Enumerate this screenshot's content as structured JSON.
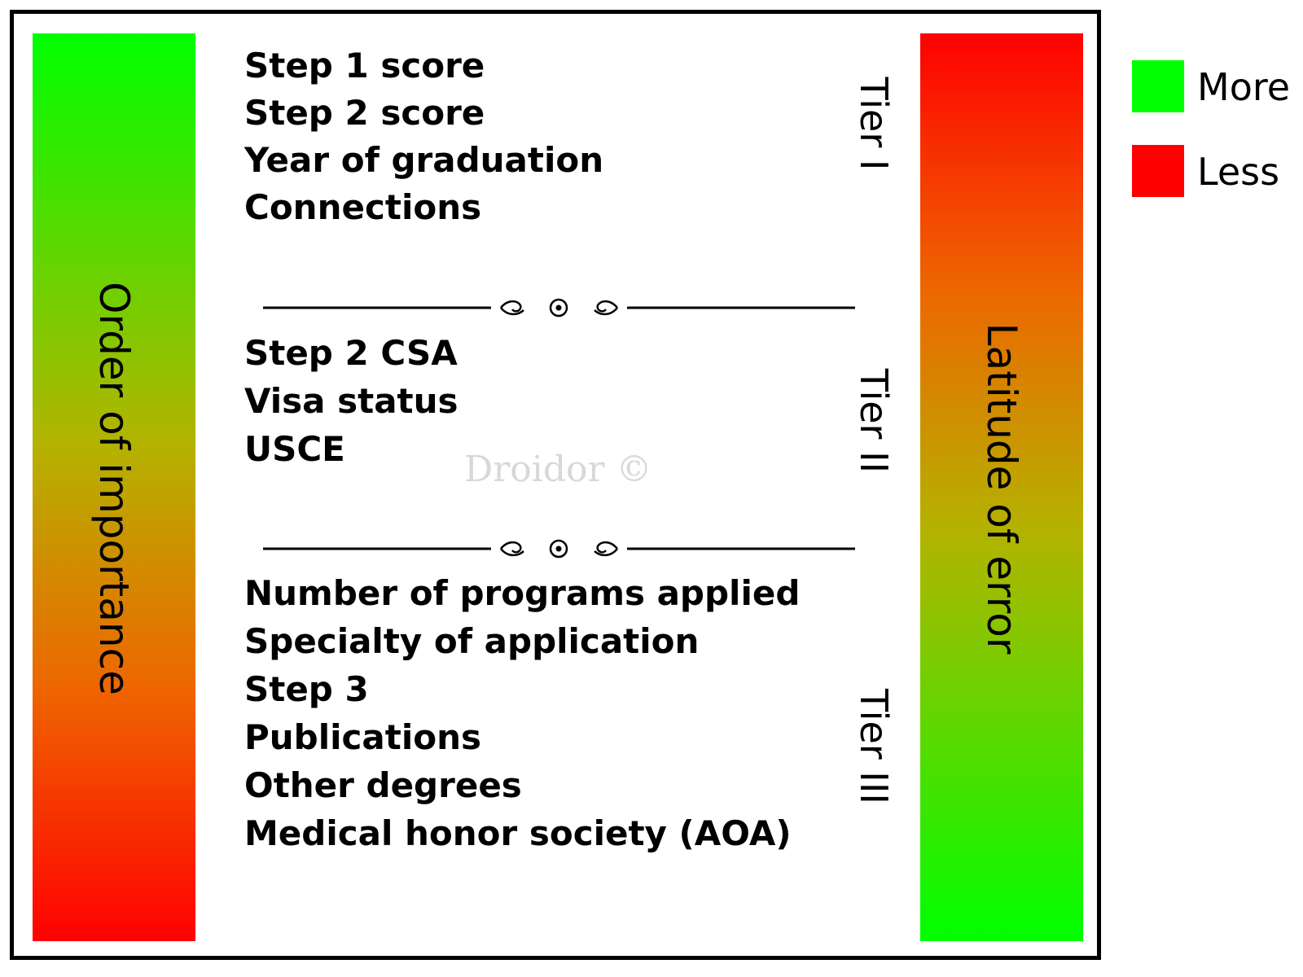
{
  "left_bar": {
    "label": "Order of importance",
    "top_color": "#00ff00",
    "bottom_color": "#ff0000"
  },
  "right_bar": {
    "label": "Latitude of error",
    "top_color": "#ff0000",
    "bottom_color": "#00ff00"
  },
  "tiers": [
    {
      "label": "Tier I",
      "items": [
        "Step 1 score",
        "Step 2 score",
        "Year of graduation",
        "Connections"
      ]
    },
    {
      "label": "Tier II",
      "items": [
        "Step 2 CSA",
        "Visa status",
        "USCE"
      ]
    },
    {
      "label": "Tier III",
      "items": [
        "Number of programs applied",
        "Specialty of application",
        "Step 3",
        "Publications",
        "Other degrees",
        "Medical honor society (AOA)"
      ]
    }
  ],
  "legend": [
    {
      "label": "More",
      "color": "#00ff00"
    },
    {
      "label": "Less",
      "color": "#ff0000"
    }
  ],
  "watermark": "Droidor ©"
}
